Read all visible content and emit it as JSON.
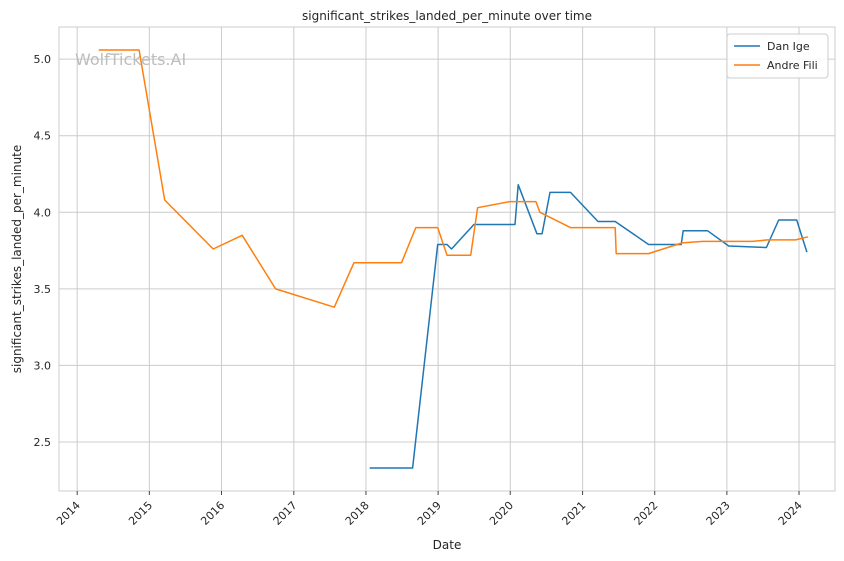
{
  "chart_data": {
    "type": "line",
    "title": "significant_strikes_landed_per_minute over time",
    "xlabel": "Date",
    "ylabel": "significant_strikes_landed_per_minute",
    "xlim": [
      "2013-10-01",
      "2024-07-01"
    ],
    "ylim": [
      2.18,
      5.21
    ],
    "x_ticks": [
      "2014",
      "2015",
      "2016",
      "2017",
      "2018",
      "2019",
      "2020",
      "2021",
      "2022",
      "2023",
      "2024"
    ],
    "y_ticks": [
      "2.5",
      "3.0",
      "3.5",
      "4.0",
      "4.5",
      "5.0"
    ],
    "y_tick_values": [
      2.5,
      3.0,
      3.5,
      4.0,
      4.5,
      5.0
    ],
    "grid": true,
    "legend_position": "top-right",
    "watermark": "WolfTickets.AI",
    "series": [
      {
        "name": "Dan Ige",
        "color": "#1f77b4",
        "points": [
          [
            "2018-01-20",
            2.33
          ],
          [
            "2018-08-25",
            2.33
          ],
          [
            "2018-12-30",
            3.79
          ],
          [
            "2019-02-15",
            3.79
          ],
          [
            "2019-03-10",
            3.76
          ],
          [
            "2019-07-01",
            3.92
          ],
          [
            "2020-01-25",
            3.92
          ],
          [
            "2020-02-10",
            4.18
          ],
          [
            "2020-05-15",
            3.86
          ],
          [
            "2020-06-10",
            3.86
          ],
          [
            "2020-07-20",
            4.13
          ],
          [
            "2020-11-01",
            4.13
          ],
          [
            "2021-03-20",
            3.94
          ],
          [
            "2021-06-15",
            3.94
          ],
          [
            "2021-12-01",
            3.79
          ],
          [
            "2022-05-15",
            3.79
          ],
          [
            "2022-05-25",
            3.88
          ],
          [
            "2022-09-25",
            3.88
          ],
          [
            "2023-01-10",
            3.78
          ],
          [
            "2023-07-20",
            3.77
          ],
          [
            "2023-09-20",
            3.95
          ],
          [
            "2023-12-20",
            3.95
          ],
          [
            "2024-02-10",
            3.74
          ]
        ]
      },
      {
        "name": "Andre Fili",
        "color": "#ff7f0e",
        "points": [
          [
            "2014-04-20",
            5.06
          ],
          [
            "2014-11-10",
            5.06
          ],
          [
            "2015-03-20",
            4.08
          ],
          [
            "2015-11-20",
            3.76
          ],
          [
            "2016-04-15",
            3.85
          ],
          [
            "2016-10-01",
            3.5
          ],
          [
            "2017-07-25",
            3.38
          ],
          [
            "2017-11-01",
            3.67
          ],
          [
            "2018-06-30",
            3.67
          ],
          [
            "2018-09-10",
            3.9
          ],
          [
            "2018-12-30",
            3.9
          ],
          [
            "2019-02-15",
            3.72
          ],
          [
            "2019-06-15",
            3.72
          ],
          [
            "2019-07-20",
            4.03
          ],
          [
            "2019-12-30",
            4.07
          ],
          [
            "2020-05-10",
            4.07
          ],
          [
            "2020-05-30",
            4.0
          ],
          [
            "2020-11-01",
            3.9
          ],
          [
            "2021-06-15",
            3.9
          ],
          [
            "2021-06-20",
            3.73
          ],
          [
            "2021-12-01",
            3.73
          ],
          [
            "2022-05-20",
            3.8
          ],
          [
            "2022-09-01",
            3.81
          ],
          [
            "2023-05-10",
            3.81
          ],
          [
            "2023-07-25",
            3.82
          ],
          [
            "2023-12-15",
            3.82
          ],
          [
            "2024-02-15",
            3.84
          ]
        ]
      }
    ]
  }
}
